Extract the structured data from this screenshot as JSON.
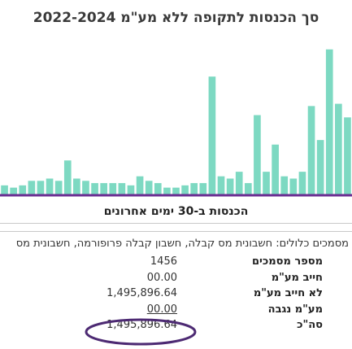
{
  "chart_data": {
    "type": "bar",
    "title": "סך הכנסות לתקופה ללא מע\"מ  2022-2024",
    "color": "#7dd9c2",
    "values": [
      4,
      3,
      4,
      6,
      6,
      7,
      6,
      15,
      7,
      6,
      5,
      5,
      5,
      5,
      4,
      8,
      6,
      5,
      3,
      3,
      4,
      5,
      5,
      52,
      8,
      7,
      10,
      5,
      35,
      10,
      22,
      8,
      7,
      10,
      39,
      24,
      64,
      40,
      34
    ],
    "ylim": [
      0,
      70
    ],
    "grid": false
  },
  "section": {
    "title": "הכנסות ב-30 ימים אחרונים"
  },
  "docs": {
    "text": "מסמכים כלולים: חשבונית מס קבלה, חשבון קבלה פרופורמה, חשבונית מס"
  },
  "stats": [
    {
      "label": "מספר מסמכים",
      "value": "1456"
    },
    {
      "label": "חייב מע\"מ",
      "value": "00.00"
    },
    {
      "label": "לא חייב מע\"מ",
      "value": "1,495,896.64"
    },
    {
      "label": "מע\"מ נגבה",
      "value": "00.00"
    },
    {
      "label": "סה\"כ",
      "value": "1,495,896.64"
    }
  ],
  "colors": {
    "highlight": "#4d2a73",
    "axis": "#6a2c91"
  }
}
